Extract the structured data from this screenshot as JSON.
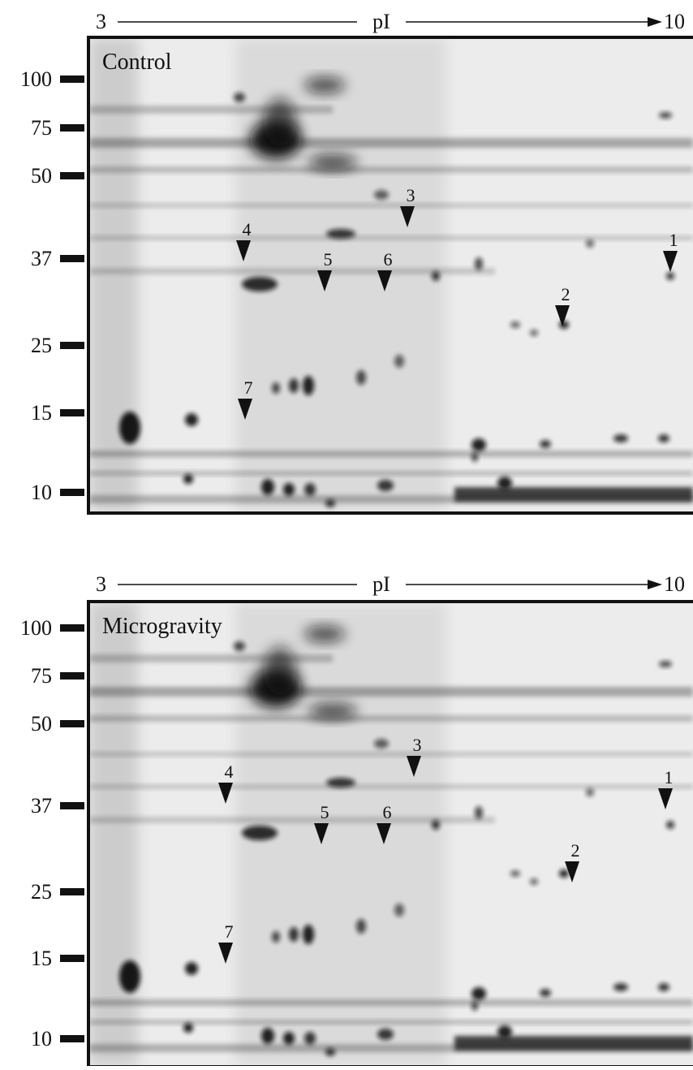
{
  "panels": [
    {
      "label": "Control",
      "pi_axis": {
        "start": "3",
        "label": "pI",
        "end": "10"
      },
      "mw_markers": [
        "100",
        "75",
        "50",
        "37",
        "25",
        "15",
        "10"
      ],
      "arrows": [
        "1",
        "2",
        "3",
        "4",
        "5",
        "6",
        "7"
      ]
    },
    {
      "label": "Microgravity",
      "pi_axis": {
        "start": "3",
        "label": "pI",
        "end": "10"
      },
      "mw_markers": [
        "100",
        "75",
        "50",
        "37",
        "25",
        "15",
        "10"
      ],
      "arrows": [
        "1",
        "2",
        "3",
        "4",
        "5",
        "6",
        "7"
      ]
    }
  ]
}
